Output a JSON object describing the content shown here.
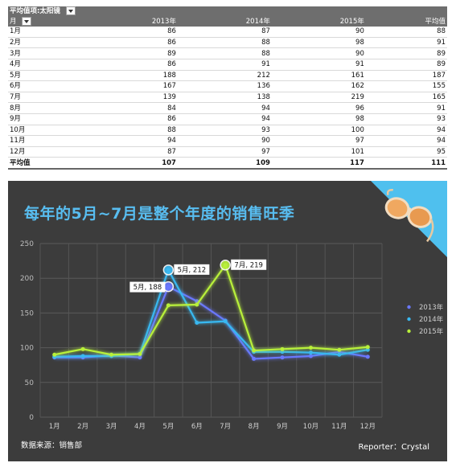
{
  "pivot": {
    "filter_label": "平均值项:太阳镜",
    "row_header": "月",
    "columns": [
      "2013年",
      "2014年",
      "2015年",
      "平均值"
    ],
    "rows": [
      [
        "1月",
        "86",
        "87",
        "90",
        "88"
      ],
      [
        "2月",
        "86",
        "88",
        "98",
        "91"
      ],
      [
        "3月",
        "89",
        "88",
        "90",
        "89"
      ],
      [
        "4月",
        "86",
        "91",
        "91",
        "89"
      ],
      [
        "5月",
        "188",
        "212",
        "161",
        "187"
      ],
      [
        "6月",
        "167",
        "136",
        "162",
        "155"
      ],
      [
        "7月",
        "139",
        "138",
        "219",
        "165"
      ],
      [
        "8月",
        "84",
        "94",
        "96",
        "91"
      ],
      [
        "9月",
        "86",
        "94",
        "98",
        "93"
      ],
      [
        "10月",
        "88",
        "93",
        "100",
        "94"
      ],
      [
        "11月",
        "94",
        "90",
        "97",
        "94"
      ],
      [
        "12月",
        "87",
        "97",
        "101",
        "95"
      ]
    ],
    "total": [
      "平均值",
      "107",
      "109",
      "117",
      "111"
    ]
  },
  "chart_title": "每年的5月~7月是整个年度的销售旺季",
  "footer": {
    "source": "数据来源：销售部",
    "reporter": "Reporter：Crystal"
  },
  "icon": "sunglasses-icon",
  "colors": {
    "background": "#3c3c3c",
    "title": "#58bdf0",
    "accent": "#4fc0ee",
    "series_2013": "#6a78ff",
    "series_2014": "#39b8f0",
    "series_2015": "#b8f03a"
  },
  "chart_data": {
    "type": "line",
    "categories": [
      "1月",
      "2月",
      "3月",
      "4月",
      "5月",
      "6月",
      "7月",
      "8月",
      "9月",
      "10月",
      "11月",
      "12月"
    ],
    "series": [
      {
        "name": "2013年",
        "color": "#6a78ff",
        "values": [
          86,
          86,
          89,
          86,
          188,
          167,
          139,
          84,
          86,
          88,
          94,
          87
        ]
      },
      {
        "name": "2014年",
        "color": "#39b8f0",
        "values": [
          87,
          88,
          88,
          91,
          212,
          136,
          138,
          94,
          94,
          93,
          90,
          97
        ]
      },
      {
        "name": "2015年",
        "color": "#b8f03a",
        "values": [
          90,
          98,
          90,
          91,
          161,
          162,
          219,
          96,
          98,
          100,
          97,
          101
        ]
      }
    ],
    "ylim": [
      0,
      250
    ],
    "yticks": [
      0,
      50,
      100,
      150,
      200,
      250
    ],
    "grid": true,
    "legend": "right",
    "annotations": [
      {
        "series": 0,
        "index": 4,
        "text": "5月, 188"
      },
      {
        "series": 1,
        "index": 4,
        "text": "5月, 212"
      },
      {
        "series": 2,
        "index": 6,
        "text": "7月, 219"
      }
    ]
  }
}
